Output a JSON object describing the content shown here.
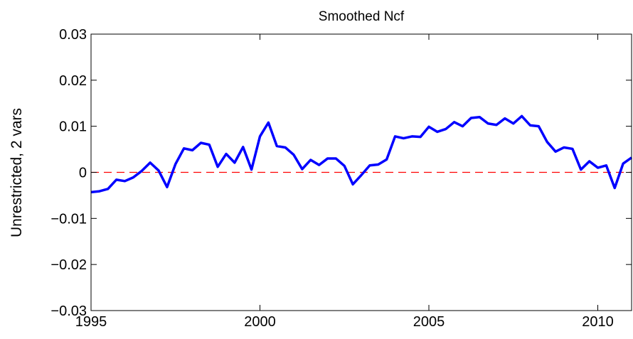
{
  "chart_data": {
    "type": "line",
    "title": "Smoothed Ncf",
    "ylabel": "Unrestricted, 2 vars",
    "x": [
      1995,
      1995.25,
      1995.5,
      1995.75,
      1996,
      1996.25,
      1996.5,
      1996.75,
      1997,
      1997.25,
      1997.5,
      1997.75,
      1998,
      1998.25,
      1998.5,
      1998.75,
      1999,
      1999.25,
      1999.5,
      1999.75,
      2000,
      2000.25,
      2000.5,
      2000.75,
      2001,
      2001.25,
      2001.5,
      2001.75,
      2002,
      2002.25,
      2002.5,
      2002.75,
      2003,
      2003.25,
      2003.5,
      2003.75,
      2004,
      2004.25,
      2004.5,
      2004.75,
      2005,
      2005.25,
      2005.5,
      2005.75,
      2006,
      2006.25,
      2006.5,
      2006.75,
      2007,
      2007.25,
      2007.5,
      2007.75,
      2008,
      2008.25,
      2008.5,
      2008.75,
      2009,
      2009.25,
      2009.5,
      2009.75,
      2010,
      2010.25,
      2010.5,
      2010.75,
      2011
    ],
    "series": [
      {
        "name": "Smoothed Ncf",
        "color": "#0000ff",
        "values": [
          -0.0043,
          -0.0041,
          -0.0036,
          -0.0016,
          -0.0019,
          -0.0011,
          0.0003,
          0.0021,
          0.0004,
          -0.0032,
          0.0018,
          0.0052,
          0.0048,
          0.0064,
          0.006,
          0.0012,
          0.004,
          0.0021,
          0.0055,
          0.0006,
          0.0078,
          0.0108,
          0.0057,
          0.0054,
          0.0038,
          0.0007,
          0.0027,
          0.0016,
          0.003,
          0.003,
          0.0014,
          -0.0026,
          -0.0006,
          0.0015,
          0.0017,
          0.0028,
          0.0078,
          0.0074,
          0.0078,
          0.0077,
          0.0099,
          0.0088,
          0.0094,
          0.0109,
          0.01,
          0.0118,
          0.012,
          0.0106,
          0.0103,
          0.0117,
          0.0106,
          0.0122,
          0.0102,
          0.01,
          0.0066,
          0.0045,
          0.0054,
          0.0051,
          0.0006,
          0.0024,
          0.001,
          0.0015,
          -0.0034,
          0.0019,
          0.0032
        ]
      }
    ],
    "xlim": [
      1995,
      2011
    ],
    "xticks": [
      1995,
      2000,
      2005,
      2010
    ],
    "ylim": [
      -0.03,
      0.03
    ],
    "yticks": [
      {
        "value": -0.03,
        "label": "−0.03"
      },
      {
        "value": -0.02,
        "label": "−0.02"
      },
      {
        "value": -0.01,
        "label": "−0.01"
      },
      0,
      0.01,
      0.02,
      0.03
    ],
    "reference_line": {
      "value": 0,
      "color": "#ff0000"
    }
  }
}
